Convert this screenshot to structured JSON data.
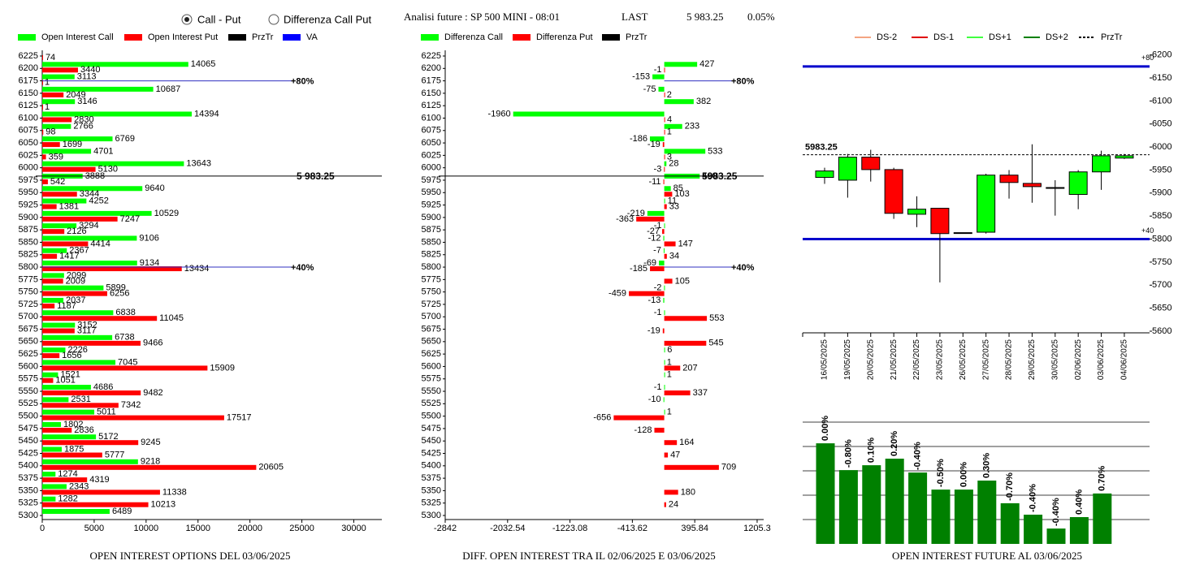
{
  "header": {
    "options": [
      {
        "label": "Call - Put",
        "selected": true
      },
      {
        "label": "Differenza Call Put",
        "selected": false
      }
    ],
    "title": "Analisi future : SP 500 MINI - 08:01",
    "last_label": "LAST",
    "last": "5 983.25",
    "change": "0.05%"
  },
  "chart_data": [
    {
      "type": "hbar",
      "title": "OPEN INTEREST OPTIONS DEL 03/06/2025",
      "categories": [
        6225,
        6200,
        6175,
        6150,
        6125,
        6100,
        6075,
        6050,
        6025,
        6000,
        5975,
        5950,
        5925,
        5900,
        5875,
        5850,
        5825,
        5800,
        5775,
        5750,
        5725,
        5700,
        5675,
        5650,
        5625,
        5600,
        5575,
        5550,
        5525,
        5500,
        5475,
        5450,
        5425,
        5400,
        5375,
        5350,
        5325,
        5300
      ],
      "series": [
        {
          "name": "Open Interest Call",
          "color": "#00ff00",
          "values": [
            null,
            14065,
            3113,
            10687,
            3146,
            14394,
            2766,
            6769,
            4701,
            13643,
            3888,
            9640,
            4252,
            10529,
            3294,
            9106,
            2367,
            9134,
            2099,
            5899,
            2037,
            6838,
            3152,
            6738,
            2226,
            7045,
            1521,
            4686,
            2531,
            5011,
            1802,
            5172,
            1875,
            9218,
            1274,
            2343,
            1282,
            6489
          ]
        },
        {
          "name": "Open Interest Put",
          "color": "#ff0000",
          "values": [
            74,
            3440,
            1,
            2049,
            1,
            2830,
            98,
            1699,
            359,
            5130,
            542,
            3344,
            1381,
            7247,
            2126,
            4414,
            1417,
            13434,
            2009,
            6256,
            1187,
            11045,
            3117,
            9466,
            1656,
            15909,
            1051,
            9482,
            7342,
            17517,
            2836,
            9245,
            5777,
            20605,
            4319,
            11338,
            10213,
            null
          ]
        }
      ],
      "legend_extra": [
        {
          "name": "PrzTr",
          "color": "#000000"
        },
        {
          "name": "VA",
          "color": "#0000ff"
        }
      ],
      "xlim": [
        0,
        32700
      ],
      "xticks": [
        0,
        5000,
        10000,
        15000,
        20000,
        25000,
        30000
      ],
      "levels": [
        {
          "value": 6175,
          "label": "+80%"
        },
        {
          "value": 5800,
          "label": "+40%"
        }
      ],
      "price": {
        "value": 5983.25,
        "label": "5 983.25"
      }
    },
    {
      "type": "hbar",
      "title": "DIFF. OPEN INTEREST TRA IL 02/06/2025 E 03/06/2025",
      "categories": [
        6225,
        6200,
        6175,
        6150,
        6125,
        6100,
        6075,
        6050,
        6025,
        6000,
        5975,
        5950,
        5925,
        5900,
        5875,
        5850,
        5825,
        5800,
        5775,
        5750,
        5725,
        5700,
        5675,
        5650,
        5625,
        5600,
        5575,
        5550,
        5525,
        5500,
        5475,
        5450,
        5425,
        5400,
        5375,
        5350,
        5325,
        5300
      ],
      "series": [
        {
          "name": "Differenza Call",
          "color": "#00ff00",
          "values": [
            null,
            427,
            -153,
            -75,
            382,
            -1960,
            233,
            -186,
            533,
            28,
            460,
            85,
            11,
            -219,
            -1,
            -12,
            -7,
            -69,
            null,
            -2,
            -13,
            -1,
            null,
            null,
            6,
            1,
            1,
            -1,
            -10,
            1,
            null,
            null,
            null,
            null,
            null,
            null,
            null,
            null
          ]
        },
        {
          "name": "Differenza Put",
          "color": "#ff0000",
          "values": [
            null,
            -1,
            null,
            2,
            null,
            4,
            1,
            -19,
            3,
            -3,
            -11,
            103,
            33,
            -363,
            -27,
            147,
            34,
            -185,
            105,
            -459,
            null,
            553,
            -19,
            545,
            null,
            207,
            null,
            337,
            null,
            -656,
            -128,
            164,
            47,
            709,
            null,
            180,
            24,
            null
          ]
        }
      ],
      "legend_extra": [
        {
          "name": "PrzTr",
          "color": "#000000"
        }
      ],
      "xlim": [
        -2842,
        1290
      ],
      "xticks": [
        -2842,
        -2032.54,
        -1223.08,
        -413.62,
        395.84,
        1205.3
      ],
      "levels": [
        {
          "value": 6175,
          "label": "+80%"
        },
        {
          "value": 5800,
          "label": "+40%"
        }
      ],
      "price": {
        "value": 5983.25,
        "label": "5983.25"
      }
    },
    {
      "type": "candlestick",
      "categories": [
        "16/05/2025",
        "19/05/2025",
        "20/05/2025",
        "21/05/2025",
        "22/05/2025",
        "23/05/2025",
        "26/05/2025",
        "27/05/2025",
        "28/05/2025",
        "29/05/2025",
        "30/05/2025",
        "02/06/2025",
        "03/06/2025",
        "04/06/2025"
      ],
      "open": [
        5934,
        5928,
        5978,
        5951,
        5854,
        5867,
        5814,
        5815,
        5939,
        5921,
        5912,
        5897,
        5946,
        5976
      ],
      "high": [
        5955,
        5985,
        5994,
        5955,
        5893,
        5868,
        5814,
        5942,
        5950,
        6006,
        5928,
        5950,
        5992,
        5985
      ],
      "low": [
        5920,
        5890,
        5925,
        5844,
        5826,
        5706,
        5814,
        5812,
        5888,
        5879,
        5851,
        5865,
        5907,
        5974
      ],
      "close": [
        5948,
        5978,
        5951,
        5856,
        5865,
        5812,
        5814,
        5939,
        5923,
        5914,
        5912,
        5946,
        5981,
        5981
      ],
      "up_color": "#00ff00",
      "down_color": "#ff0000",
      "legend": [
        {
          "name": "DS-2",
          "color": "#f4a582"
        },
        {
          "name": "DS-1",
          "color": "#e00000"
        },
        {
          "name": "DS+1",
          "color": "#40ff40"
        },
        {
          "name": "DS+2",
          "color": "#008000"
        },
        {
          "name": "PrzTr",
          "color": "#000000",
          "dashed": true
        }
      ],
      "ylim": [
        5600,
        6210
      ],
      "yticks": [
        5600,
        5650,
        5700,
        5750,
        5800,
        5850,
        5900,
        5950,
        6000,
        6050,
        6100,
        6150,
        6200
      ],
      "levels": [
        {
          "value": 6175,
          "label": "+80"
        },
        {
          "value": 5800,
          "label": "+40"
        }
      ],
      "level_color": "#0000cc",
      "price": {
        "value": 5983.25,
        "label": "5983.25"
      }
    },
    {
      "type": "bar",
      "title": "OPEN INTEREST FUTURE AL 03/06/2025",
      "values": [
        4.13,
        3.03,
        3.23,
        3.5,
        2.93,
        2.23,
        2.23,
        2.6,
        1.67,
        1.2,
        0.63,
        1.1,
        2.07
      ],
      "bar_labels": [
        "0.00%",
        "-0.80%",
        "0.10%",
        "0.20%",
        "-0.40%",
        "-0.50%",
        "0.00%",
        "0.30%",
        "-0.70%",
        "-0.40%",
        "-0.40%",
        "0.40%",
        "0.70%"
      ],
      "color": "#008000",
      "ylim": [
        0,
        5.5
      ],
      "yticks": [
        1,
        2,
        3,
        4,
        5
      ],
      "grid": true
    }
  ]
}
